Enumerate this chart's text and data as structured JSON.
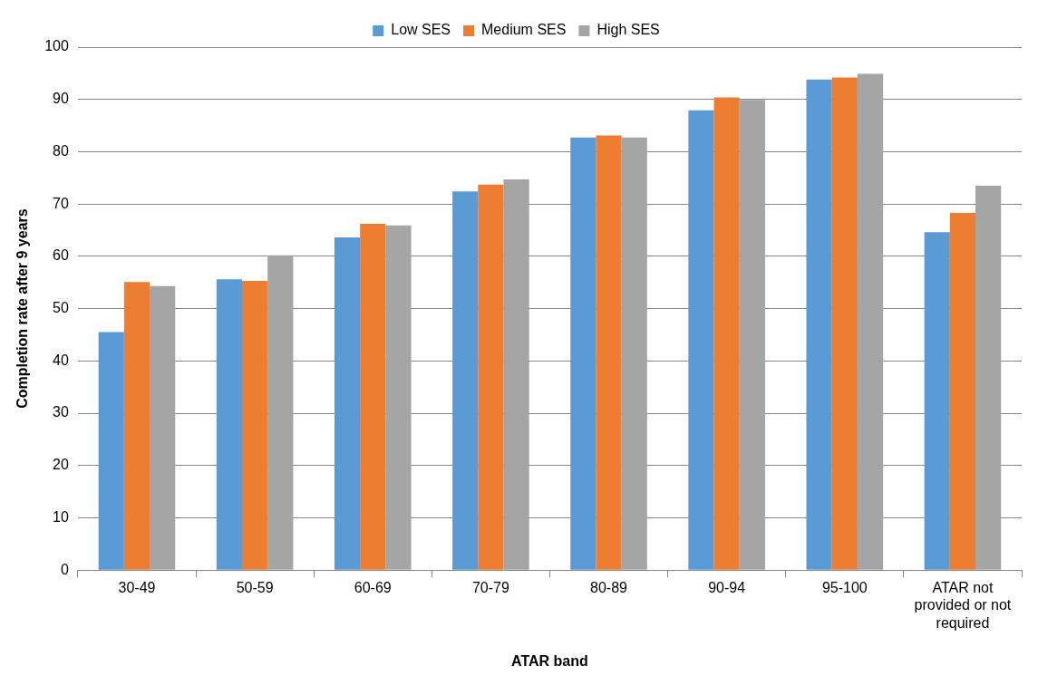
{
  "chart_data": {
    "type": "bar",
    "xlabel": "ATAR band",
    "ylabel": "Completion rate after 9 years",
    "categories": [
      "30-49",
      "50-59",
      "60-69",
      "70-79",
      "80-89",
      "90-94",
      "95-100",
      "ATAR not provided or not required"
    ],
    "series": [
      {
        "name": "Low SES",
        "color": "#5b9bd5",
        "values": [
          45.5,
          55.6,
          63.6,
          72.4,
          82.7,
          87.9,
          93.8,
          64.6
        ]
      },
      {
        "name": "Medium SES",
        "color": "#ed7d31",
        "values": [
          55.1,
          55.3,
          66.2,
          73.7,
          83.1,
          90.4,
          94.2,
          68.3
        ]
      },
      {
        "name": "High SES",
        "color": "#a5a5a5",
        "values": [
          54.3,
          60.2,
          65.9,
          74.7,
          82.7,
          89.9,
          94.9,
          73.5
        ]
      }
    ],
    "ylim": [
      0,
      100
    ],
    "yticks": [
      0,
      10,
      20,
      30,
      40,
      50,
      60,
      70,
      80,
      90,
      100
    ],
    "grid": "y",
    "legend": "top"
  }
}
